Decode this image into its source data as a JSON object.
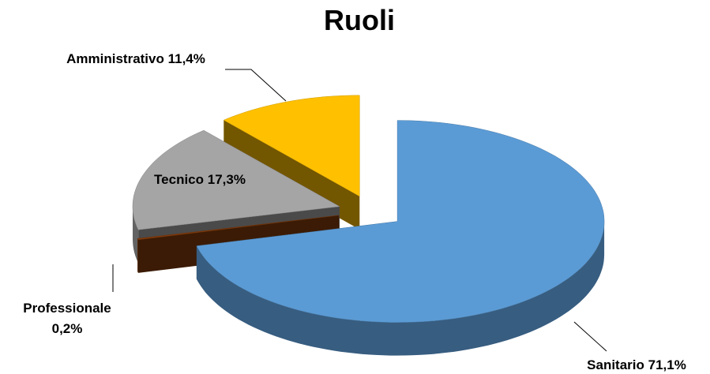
{
  "chart_data": {
    "type": "pie",
    "title": "Ruoli",
    "categories": [
      "Sanitario",
      "Professionale",
      "Tecnico",
      "Amministrativo"
    ],
    "values": [
      71.1,
      0.2,
      17.3,
      11.4
    ],
    "value_labels": [
      "71,1%",
      "0,2%",
      "17,3%",
      "11,4%"
    ],
    "colors": [
      "#5b9bd5",
      "#843c0c",
      "#a5a5a5",
      "#ffc000"
    ]
  }
}
